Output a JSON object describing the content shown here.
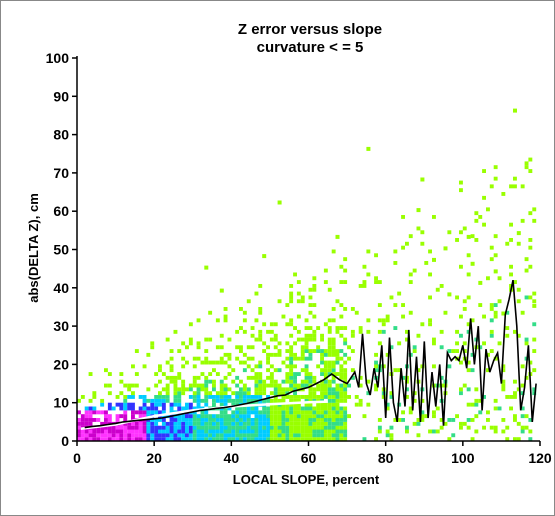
{
  "chart_data": {
    "type": "heatmap",
    "title": "Z error versus slope",
    "subtitle": "curvature < = 5",
    "xlabel": "LOCAL SLOPE, percent",
    "ylabel": "abs(DELTA Z), cm",
    "xlim": [
      0,
      120
    ],
    "ylim": [
      0,
      100
    ],
    "x_ticks": [
      "0",
      "20",
      "40",
      "60",
      "80",
      "100",
      "120"
    ],
    "y_ticks": [
      "0",
      "10",
      "20",
      "30",
      "40",
      "50",
      "60",
      "70",
      "80",
      "90",
      "100"
    ],
    "grid": false,
    "colormap": [
      "#cc00cc",
      "#ff33ff",
      "#3333ff",
      "#00ccff",
      "#33dd88",
      "#99ff00"
    ],
    "mean_line": {
      "color": "#000000",
      "x": [
        2,
        4,
        6,
        8,
        10,
        12,
        14,
        16,
        18,
        20,
        22,
        24,
        26,
        28,
        30,
        32,
        34,
        36,
        38,
        40,
        42,
        44,
        46,
        48,
        50,
        52,
        54,
        56,
        58,
        60,
        62,
        64,
        66,
        68,
        70,
        72,
        73,
        74,
        75,
        76,
        77,
        78,
        79,
        80,
        81,
        82,
        83,
        84,
        85,
        86,
        87,
        88,
        89,
        90,
        91,
        92,
        93,
        94,
        95,
        96,
        97,
        98,
        99,
        100,
        101,
        102,
        103,
        104,
        105,
        106,
        107,
        108,
        109,
        110,
        111,
        112,
        113,
        114,
        115,
        116,
        117,
        118,
        119
      ],
      "y": [
        3.5,
        3.8,
        4,
        4.3,
        4.6,
        5,
        5.2,
        5.4,
        5.6,
        5.8,
        6,
        6.4,
        6.8,
        7.2,
        7.6,
        8,
        8.2,
        8.5,
        8.7,
        9,
        9.4,
        9.8,
        10.3,
        10.8,
        11.3,
        11.8,
        12,
        13,
        13.5,
        14,
        15,
        16,
        17.5,
        16,
        15,
        18,
        14,
        28,
        15,
        12,
        19,
        14,
        25,
        6,
        27,
        10,
        5,
        19,
        9,
        29,
        8,
        22,
        5,
        26,
        6,
        18,
        9,
        20,
        4,
        23,
        21,
        22,
        21,
        25,
        19,
        32,
        20,
        30,
        8,
        24,
        18,
        21,
        23,
        15,
        33,
        37,
        42,
        30,
        8,
        14,
        25,
        5,
        15
      ]
    },
    "trend_line": {
      "color": "#ffffff",
      "x": [
        1,
        10,
        20,
        30,
        40,
        50,
        60,
        65
      ],
      "y": [
        3.2,
        4.3,
        6.5,
        8.0,
        9.0,
        9.6,
        10.1,
        10.3
      ]
    },
    "outliers_x": [
      33,
      37,
      48,
      52,
      67,
      75,
      88,
      89,
      101,
      113,
      114,
      102,
      108,
      95,
      92,
      104,
      118,
      110,
      96
    ],
    "outliers_y": [
      45,
      39,
      48,
      62,
      53,
      76,
      60,
      68,
      53,
      86,
      54,
      46,
      44,
      50,
      47,
      41,
      35,
      33,
      38
    ]
  }
}
